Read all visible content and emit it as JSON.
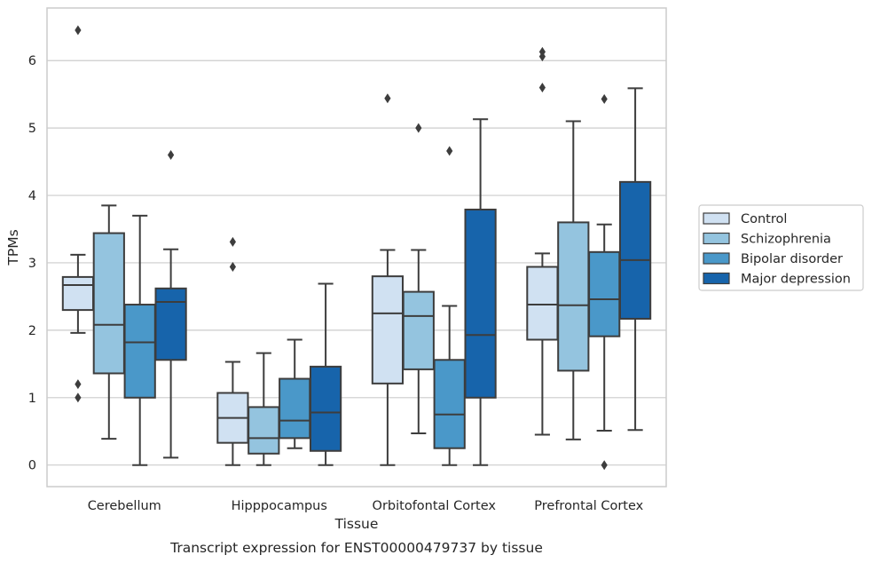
{
  "chart_data": {
    "type": "box",
    "title": "",
    "caption": "Transcript expression for ENST00000479737 by tissue",
    "xlabel": "Tissue",
    "ylabel": "TPMs",
    "ylim": [
      -0.32,
      6.78
    ],
    "yticks": [
      0,
      1,
      2,
      3,
      4,
      5,
      6
    ],
    "grid": "horizontal",
    "legend_position": "right",
    "categories": [
      "Cerebellum",
      "Hipppocampus",
      "Orbitofontal Cortex",
      "Prefrontal Cortex"
    ],
    "series": [
      {
        "name": "Control",
        "color": "#d0e1f2",
        "boxes": [
          {
            "whisker_low": 1.96,
            "q1": 2.3,
            "median": 2.67,
            "q3": 2.79,
            "whisker_high": 3.12,
            "outliers": [
              1.2,
              1.0,
              6.45
            ]
          },
          {
            "whisker_low": 0.0,
            "q1": 0.33,
            "median": 0.7,
            "q3": 1.07,
            "whisker_high": 1.53,
            "outliers": [
              3.31,
              2.94
            ]
          },
          {
            "whisker_low": 0.0,
            "q1": 1.21,
            "median": 2.25,
            "q3": 2.8,
            "whisker_high": 3.19,
            "outliers": [
              5.44
            ]
          },
          {
            "whisker_low": 0.45,
            "q1": 1.86,
            "median": 2.38,
            "q3": 2.94,
            "whisker_high": 3.14,
            "outliers": [
              6.13,
              6.06,
              5.6
            ]
          }
        ]
      },
      {
        "name": "Schizophrenia",
        "color": "#94c4df",
        "boxes": [
          {
            "whisker_low": 0.39,
            "q1": 1.36,
            "median": 2.08,
            "q3": 3.44,
            "whisker_high": 3.85,
            "outliers": []
          },
          {
            "whisker_low": 0.0,
            "q1": 0.17,
            "median": 0.4,
            "q3": 0.86,
            "whisker_high": 1.66,
            "outliers": []
          },
          {
            "whisker_low": 0.47,
            "q1": 1.42,
            "median": 2.21,
            "q3": 2.57,
            "whisker_high": 3.19,
            "outliers": [
              5.0
            ]
          },
          {
            "whisker_low": 0.38,
            "q1": 1.4,
            "median": 2.37,
            "q3": 3.6,
            "whisker_high": 5.1,
            "outliers": []
          }
        ]
      },
      {
        "name": "Bipolar disorder",
        "color": "#4a98c9",
        "boxes": [
          {
            "whisker_low": 0.0,
            "q1": 1.0,
            "median": 1.82,
            "q3": 2.38,
            "whisker_high": 3.7,
            "outliers": []
          },
          {
            "whisker_low": 0.25,
            "q1": 0.4,
            "median": 0.66,
            "q3": 1.28,
            "whisker_high": 1.86,
            "outliers": []
          },
          {
            "whisker_low": 0.0,
            "q1": 0.25,
            "median": 0.75,
            "q3": 1.56,
            "whisker_high": 2.36,
            "outliers": [
              4.66
            ]
          },
          {
            "whisker_low": 0.51,
            "q1": 1.91,
            "median": 2.46,
            "q3": 3.16,
            "whisker_high": 3.57,
            "outliers": [
              5.43,
              0.0
            ]
          }
        ]
      },
      {
        "name": "Major depression",
        "color": "#1764ab",
        "boxes": [
          {
            "whisker_low": 0.11,
            "q1": 1.56,
            "median": 2.42,
            "q3": 2.62,
            "whisker_high": 3.2,
            "outliers": [
              4.6
            ]
          },
          {
            "whisker_low": 0.0,
            "q1": 0.21,
            "median": 0.78,
            "q3": 1.46,
            "whisker_high": 2.69,
            "outliers": []
          },
          {
            "whisker_low": 0.0,
            "q1": 1.0,
            "median": 1.93,
            "q3": 3.79,
            "whisker_high": 5.13,
            "outliers": []
          },
          {
            "whisker_low": 0.52,
            "q1": 2.17,
            "median": 3.04,
            "q3": 4.2,
            "whisker_high": 5.59,
            "outliers": []
          }
        ]
      }
    ]
  }
}
